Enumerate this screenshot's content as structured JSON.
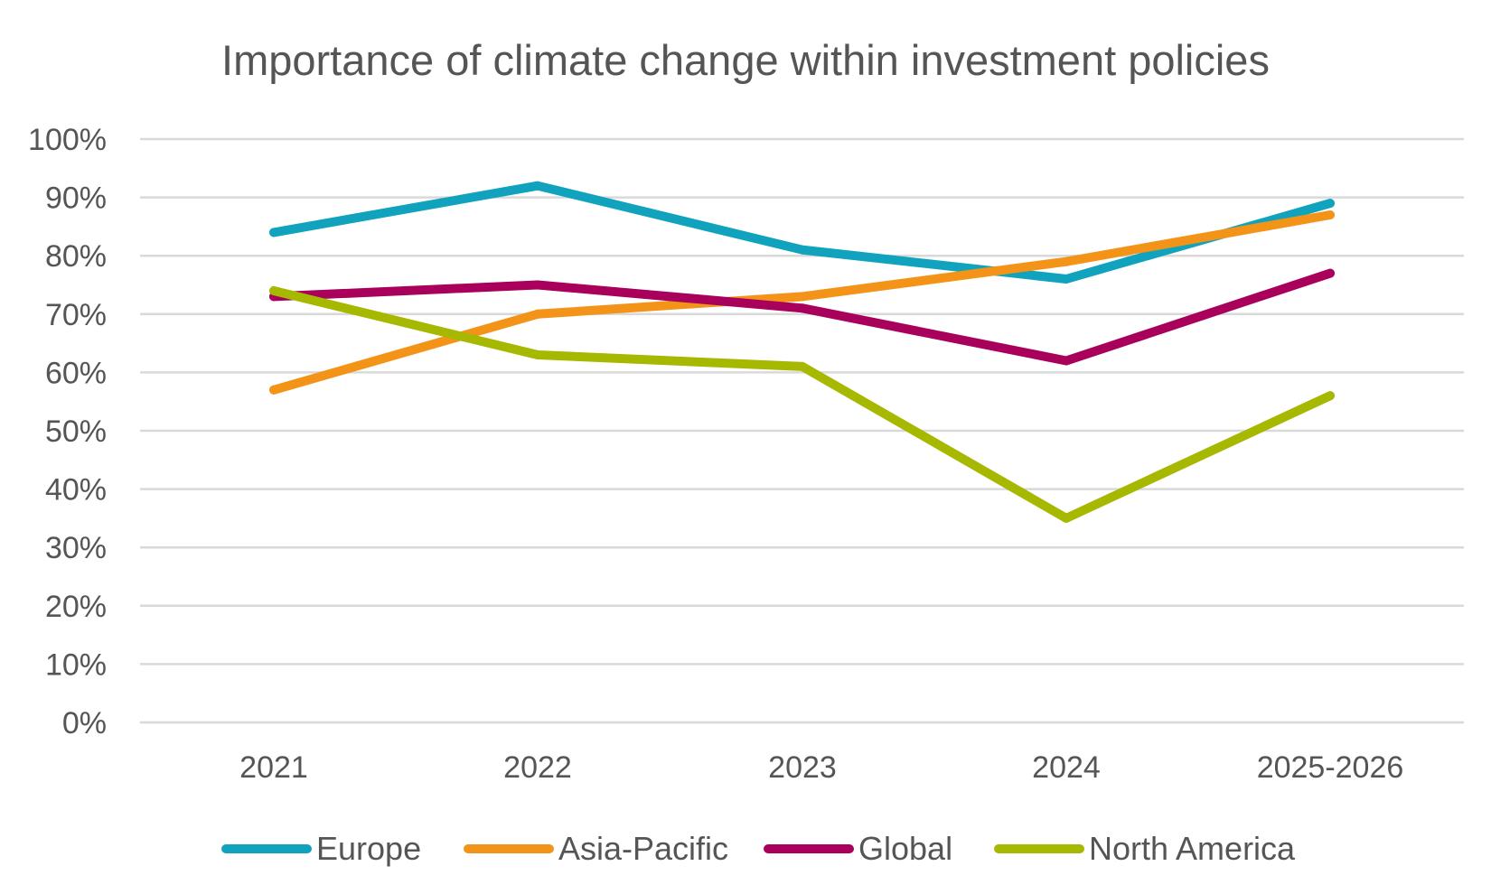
{
  "chart_data": {
    "type": "line",
    "title": "Importance of climate change within investment policies",
    "xlabel": "",
    "ylabel": "",
    "categories": [
      "2021",
      "2022",
      "2023",
      "2024",
      "2025-2026"
    ],
    "y_tick_labels": [
      "0%",
      "10%",
      "20%",
      "30%",
      "40%",
      "50%",
      "60%",
      "70%",
      "80%",
      "90%",
      "100%"
    ],
    "ylim": [
      0,
      100
    ],
    "grid": true,
    "legend_position": "bottom",
    "series": [
      {
        "name": "Europe",
        "color": "#11a3bd",
        "values": [
          84,
          92,
          81,
          76,
          89
        ]
      },
      {
        "name": "Asia-Pacific",
        "color": "#f39419",
        "values": [
          57,
          70,
          73,
          79,
          87
        ]
      },
      {
        "name": "Global",
        "color": "#a8005b",
        "values": [
          73,
          75,
          71,
          62,
          77
        ]
      },
      {
        "name": "North America",
        "color": "#a6b800",
        "values": [
          74,
          63,
          61,
          35,
          56
        ]
      }
    ]
  }
}
